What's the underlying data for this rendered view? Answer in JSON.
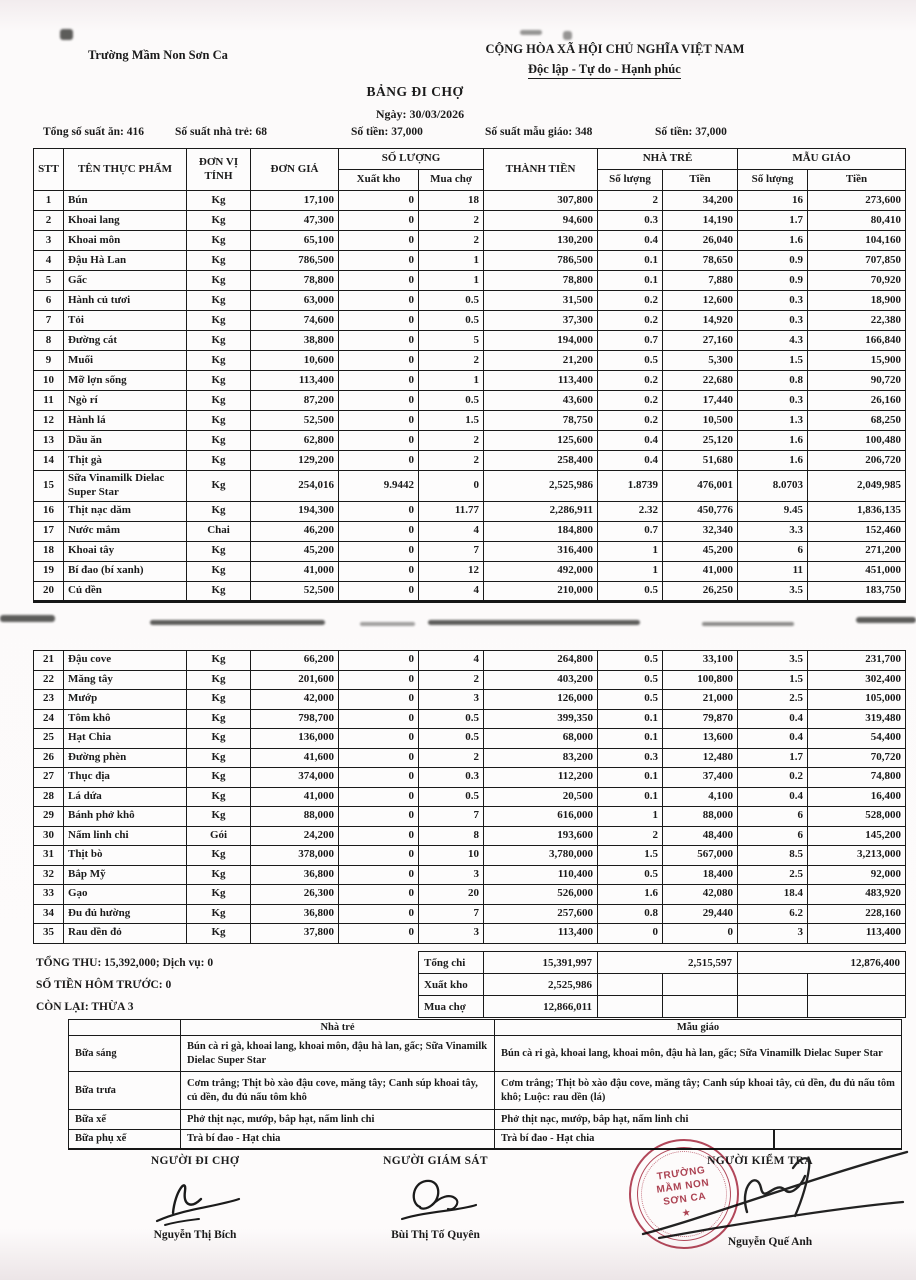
{
  "header": {
    "school": "Trường Mầm Non Sơn Ca",
    "republic_line1": "CỘNG HÒA XÃ HỘI CHỦ NGHĨA VIỆT NAM",
    "republic_line2": "Độc lập - Tự do - Hạnh phúc",
    "title": "BẢNG ĐI CHỢ",
    "date_line": "Ngày: 30/03/2026"
  },
  "info_row": [
    "Tổng số suất ăn: 416",
    "Số suất nhà trẻ: 68",
    "Số tiền: 37,000",
    "Số suất mẫu giáo: 348",
    "Số tiền: 37,000"
  ],
  "table": {
    "headers": {
      "stt": "STT",
      "name": "TÊN THỰC PHẨM",
      "unit": "ĐƠN VỊ TÍNH",
      "price": "ĐƠN GIÁ",
      "qty_group": "SỐ LƯỢNG",
      "qty_warehouse": "Xuất kho",
      "qty_market": "Mua chợ",
      "amount": "THÀNH TIỀN",
      "nursery_group": "NHÀ TRẺ",
      "kindergarten_group": "MẪU GIÁO",
      "qty": "Số lượng",
      "money": "Tiền"
    },
    "rows_part1": [
      [
        "1",
        "Bún",
        "Kg",
        "17,100",
        "0",
        "18",
        "307,800",
        "2",
        "34,200",
        "16",
        "273,600"
      ],
      [
        "2",
        "Khoai lang",
        "Kg",
        "47,300",
        "0",
        "2",
        "94,600",
        "0.3",
        "14,190",
        "1.7",
        "80,410"
      ],
      [
        "3",
        "Khoai môn",
        "Kg",
        "65,100",
        "0",
        "2",
        "130,200",
        "0.4",
        "26,040",
        "1.6",
        "104,160"
      ],
      [
        "4",
        "Đậu Hà Lan",
        "Kg",
        "786,500",
        "0",
        "1",
        "786,500",
        "0.1",
        "78,650",
        "0.9",
        "707,850"
      ],
      [
        "5",
        "Gấc",
        "Kg",
        "78,800",
        "0",
        "1",
        "78,800",
        "0.1",
        "7,880",
        "0.9",
        "70,920"
      ],
      [
        "6",
        "Hành củ tươi",
        "Kg",
        "63,000",
        "0",
        "0.5",
        "31,500",
        "0.2",
        "12,600",
        "0.3",
        "18,900"
      ],
      [
        "7",
        "Tỏi",
        "Kg",
        "74,600",
        "0",
        "0.5",
        "37,300",
        "0.2",
        "14,920",
        "0.3",
        "22,380"
      ],
      [
        "8",
        "Đường cát",
        "Kg",
        "38,800",
        "0",
        "5",
        "194,000",
        "0.7",
        "27,160",
        "4.3",
        "166,840"
      ],
      [
        "9",
        "Muối",
        "Kg",
        "10,600",
        "0",
        "2",
        "21,200",
        "0.5",
        "5,300",
        "1.5",
        "15,900"
      ],
      [
        "10",
        "Mỡ lợn sống",
        "Kg",
        "113,400",
        "0",
        "1",
        "113,400",
        "0.2",
        "22,680",
        "0.8",
        "90,720"
      ],
      [
        "11",
        "Ngò rí",
        "Kg",
        "87,200",
        "0",
        "0.5",
        "43,600",
        "0.2",
        "17,440",
        "0.3",
        "26,160"
      ],
      [
        "12",
        "Hành lá",
        "Kg",
        "52,500",
        "0",
        "1.5",
        "78,750",
        "0.2",
        "10,500",
        "1.3",
        "68,250"
      ],
      [
        "13",
        "Dầu ăn",
        "Kg",
        "62,800",
        "0",
        "2",
        "125,600",
        "0.4",
        "25,120",
        "1.6",
        "100,480"
      ],
      [
        "14",
        "Thịt gà",
        "Kg",
        "129,200",
        "0",
        "2",
        "258,400",
        "0.4",
        "51,680",
        "1.6",
        "206,720"
      ],
      [
        "15",
        "Sữa Vinamilk Dielac Super Star",
        "Kg",
        "254,016",
        "9.9442",
        "0",
        "2,525,986",
        "1.8739",
        "476,001",
        "8.0703",
        "2,049,985"
      ],
      [
        "16",
        "Thịt nạc dăm",
        "Kg",
        "194,300",
        "0",
        "11.77",
        "2,286,911",
        "2.32",
        "450,776",
        "9.45",
        "1,836,135"
      ],
      [
        "17",
        "Nước mắm",
        "Chai",
        "46,200",
        "0",
        "4",
        "184,800",
        "0.7",
        "32,340",
        "3.3",
        "152,460"
      ],
      [
        "18",
        "Khoai tây",
        "Kg",
        "45,200",
        "0",
        "7",
        "316,400",
        "1",
        "45,200",
        "6",
        "271,200"
      ],
      [
        "19",
        "Bí đao (bí xanh)",
        "Kg",
        "41,000",
        "0",
        "12",
        "492,000",
        "1",
        "41,000",
        "11",
        "451,000"
      ],
      [
        "20",
        "Củ dền",
        "Kg",
        "52,500",
        "0",
        "4",
        "210,000",
        "0.5",
        "26,250",
        "3.5",
        "183,750"
      ]
    ],
    "rows_part2": [
      [
        "21",
        "Đậu cove",
        "Kg",
        "66,200",
        "0",
        "4",
        "264,800",
        "0.5",
        "33,100",
        "3.5",
        "231,700"
      ],
      [
        "22",
        "Măng tây",
        "Kg",
        "201,600",
        "0",
        "2",
        "403,200",
        "0.5",
        "100,800",
        "1.5",
        "302,400"
      ],
      [
        "23",
        "Mướp",
        "Kg",
        "42,000",
        "0",
        "3",
        "126,000",
        "0.5",
        "21,000",
        "2.5",
        "105,000"
      ],
      [
        "24",
        "Tôm khô",
        "Kg",
        "798,700",
        "0",
        "0.5",
        "399,350",
        "0.1",
        "79,870",
        "0.4",
        "319,480"
      ],
      [
        "25",
        "Hạt Chia",
        "Kg",
        "136,000",
        "0",
        "0.5",
        "68,000",
        "0.1",
        "13,600",
        "0.4",
        "54,400"
      ],
      [
        "26",
        "Đường phèn",
        "Kg",
        "41,600",
        "0",
        "2",
        "83,200",
        "0.3",
        "12,480",
        "1.7",
        "70,720"
      ],
      [
        "27",
        "Thục địa",
        "Kg",
        "374,000",
        "0",
        "0.3",
        "112,200",
        "0.1",
        "37,400",
        "0.2",
        "74,800"
      ],
      [
        "28",
        "Lá dứa",
        "Kg",
        "41,000",
        "0",
        "0.5",
        "20,500",
        "0.1",
        "4,100",
        "0.4",
        "16,400"
      ],
      [
        "29",
        "Bánh phở khô",
        "Kg",
        "88,000",
        "0",
        "7",
        "616,000",
        "1",
        "88,000",
        "6",
        "528,000"
      ],
      [
        "30",
        "Nấm linh chi",
        "Gói",
        "24,200",
        "0",
        "8",
        "193,600",
        "2",
        "48,400",
        "6",
        "145,200"
      ],
      [
        "31",
        "Thịt bò",
        "Kg",
        "378,000",
        "0",
        "10",
        "3,780,000",
        "1.5",
        "567,000",
        "8.5",
        "3,213,000"
      ],
      [
        "32",
        "Bắp Mỹ",
        "Kg",
        "36,800",
        "0",
        "3",
        "110,400",
        "0.5",
        "18,400",
        "2.5",
        "92,000"
      ],
      [
        "33",
        "Gạo",
        "Kg",
        "26,300",
        "0",
        "20",
        "526,000",
        "1.6",
        "42,080",
        "18.4",
        "483,920"
      ],
      [
        "34",
        "Đu đủ hường",
        "Kg",
        "36,800",
        "0",
        "7",
        "257,600",
        "0.8",
        "29,440",
        "6.2",
        "228,160"
      ],
      [
        "35",
        "Rau dền đỏ",
        "Kg",
        "37,800",
        "0",
        "3",
        "113,400",
        "0",
        "0",
        "3",
        "113,400"
      ]
    ]
  },
  "totals": {
    "left_lines": [
      "TỔNG THU: 15,392,000; Dịch vụ: 0",
      "SỐ TIỀN HÔM TRƯỚC: 0",
      "CÒN LẠI: THỪA 3"
    ],
    "rows": [
      {
        "label": "Tổng chi",
        "value": "15,391,997",
        "nursery": "2,515,597",
        "kindergarten": "12,876,400",
        "merged": true
      },
      {
        "label": "Xuất kho",
        "value": "2,525,986",
        "nursery": "",
        "kindergarten": "",
        "merged": false
      },
      {
        "label": "Mua chợ",
        "value": "12,866,011",
        "nursery": "",
        "kindergarten": "",
        "merged": false
      }
    ]
  },
  "meals": {
    "col_nursery": "Nhà trẻ",
    "col_kindergarten": "Mẫu giáo",
    "rows": [
      {
        "label": "Bữa sáng",
        "nha_tre": "Bún cà ri gà, khoai lang, khoai môn, đậu hà lan, gấc; Sữa Vinamilk Dielac Super Star",
        "mau_giao": "Bún cà ri gà, khoai lang, khoai môn, đậu hà lan, gấc; Sữa Vinamilk Dielac Super Star"
      },
      {
        "label": "Bữa trưa",
        "nha_tre": "Cơm trắng; Thịt bò xào đậu cove, măng tây; Canh súp khoai tây, củ dền, đu đủ nấu tôm khô",
        "mau_giao": "Cơm trắng; Thịt bò xào đậu cove, măng tây; Canh súp khoai tây, củ dền, đu đủ nấu tôm khô; Luộc: rau dền (lá)"
      },
      {
        "label": "Bữa xế",
        "nha_tre": "Phở thịt nạc, mướp, bắp hạt, nấm linh chi",
        "mau_giao": "Phở thịt nạc, mướp, bắp hạt, nấm linh chi"
      },
      {
        "label": "Bữa phụ xế",
        "nha_tre": "Trà bí đao - Hạt chia",
        "mau_giao": "Trà bí đao - Hạt chia"
      }
    ]
  },
  "signatures": [
    {
      "title": "NGƯỜI ĐI CHỢ",
      "name": "Nguyễn Thị Bích"
    },
    {
      "title": "NGƯỜI GIÁM SÁT",
      "name": "Bùi Thị Tố Quyên"
    },
    {
      "title": "NGƯỜI KIỂM TRA",
      "name": "Nguyễn Quế Anh"
    }
  ],
  "stamp": {
    "line1": "TRƯỜNG",
    "line2": "MẦM NON",
    "line3": "SƠN CA",
    "star": "★",
    "color": "#a83446"
  }
}
